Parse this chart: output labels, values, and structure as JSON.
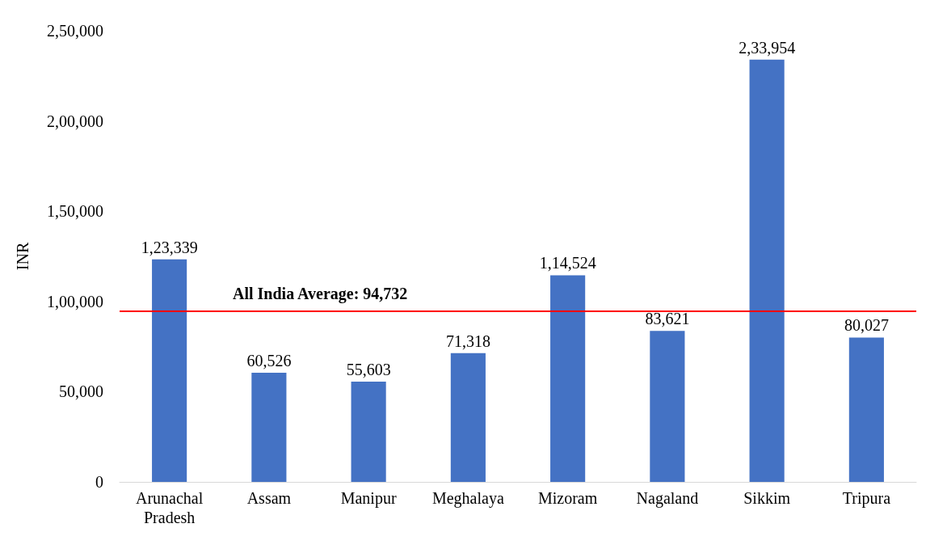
{
  "chart_data": {
    "type": "bar",
    "ylabel": "INR",
    "categories": [
      "Arunachal Pradesh",
      "Assam",
      "Manipur",
      "Meghalaya",
      "Mizoram",
      "Nagaland",
      "Sikkim",
      "Tripura"
    ],
    "values": [
      123339,
      60526,
      55603,
      71318,
      114524,
      83621,
      233954,
      80027
    ],
    "value_labels": [
      "1,23,339",
      "60,526",
      "55,603",
      "71,318",
      "1,14,524",
      "83,621",
      "2,33,954",
      "80,027"
    ],
    "color": "#4472c4",
    "ylim": [
      0,
      250000
    ],
    "yticks": [
      0,
      {
        "value": 50000,
        "label": "50,000"
      },
      {
        "value": 100000,
        "label": "1,00,000"
      },
      {
        "value": 150000,
        "label": "1,50,000"
      },
      {
        "value": 200000,
        "label": "2,00,000"
      },
      {
        "value": 250000,
        "label": "2,50,000"
      }
    ],
    "ref_lines": [
      {
        "axis": "y",
        "value": 94732,
        "label": "All India Average: 94,732",
        "color": "#ff0000"
      }
    ],
    "grid": false
  }
}
